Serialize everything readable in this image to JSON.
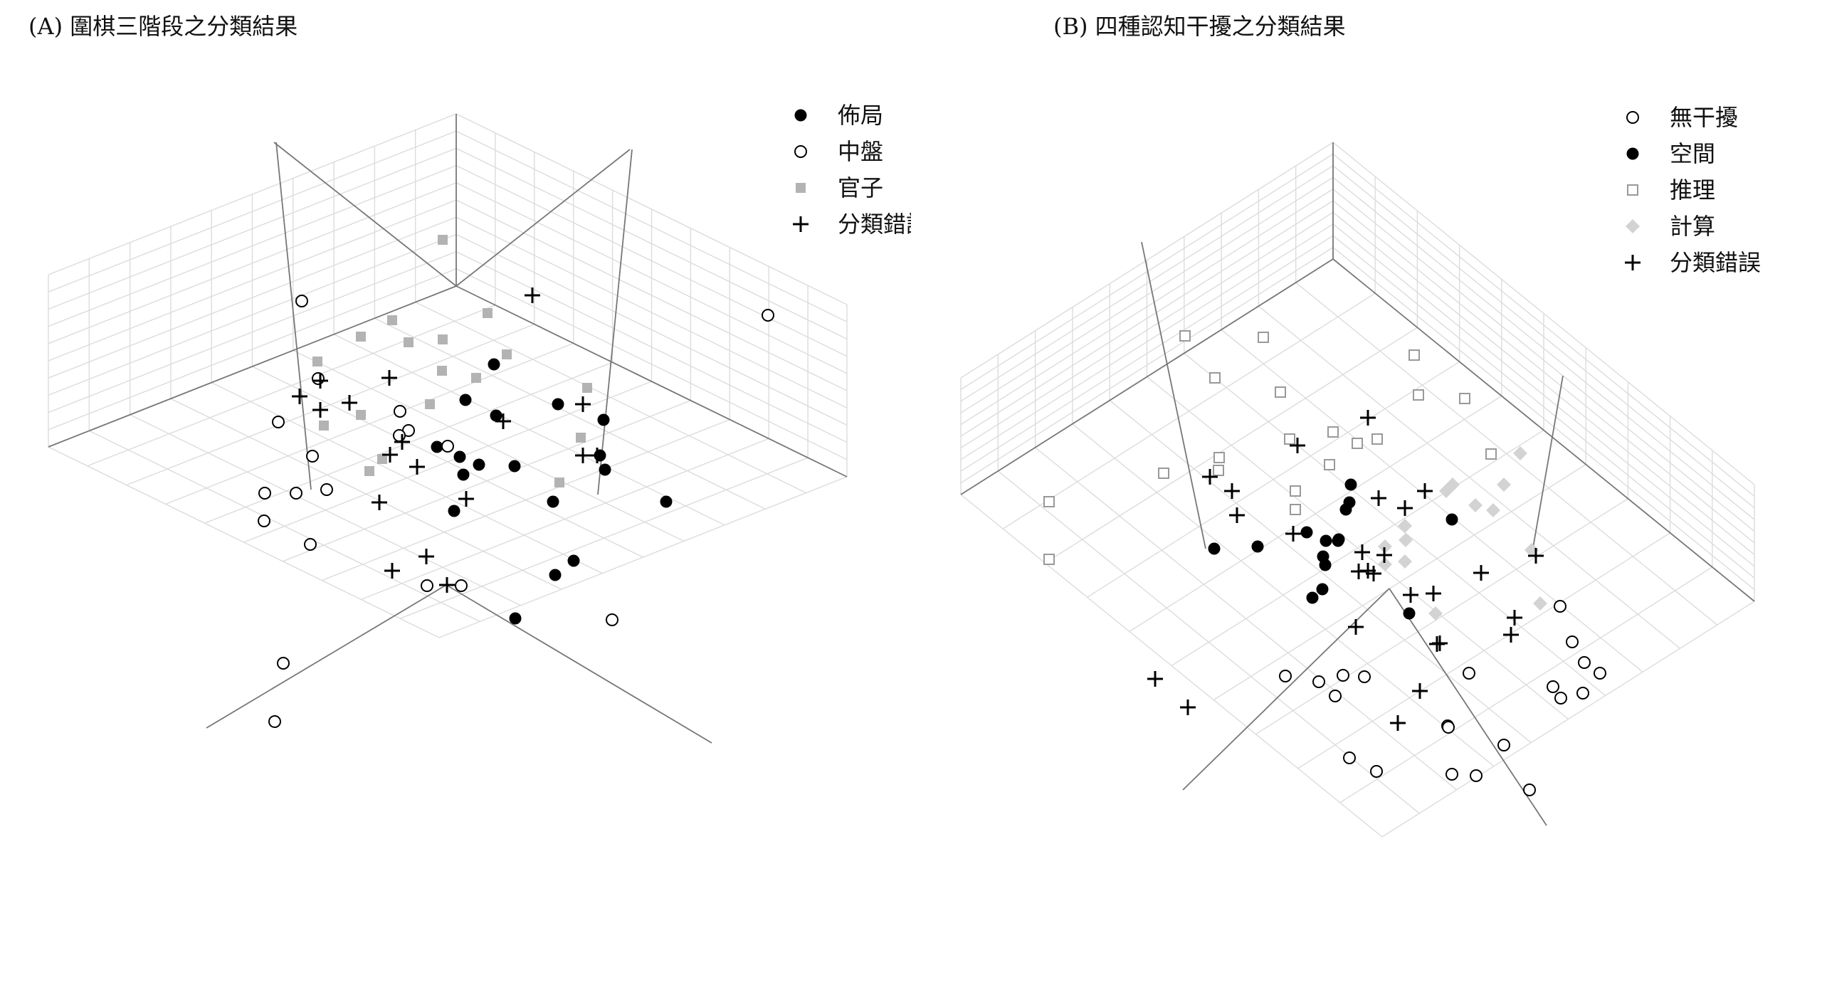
{
  "chart_data": [
    {
      "type": "scatter",
      "title": "(A) 圍棋三階段之分類結果",
      "legend": [
        {
          "label": "佈局",
          "marker": "filled-circle",
          "color": "#000000"
        },
        {
          "label": "中盤",
          "marker": "open-circle",
          "color": "#000000"
        },
        {
          "label": "官子",
          "marker": "filled-square",
          "color": "#b3b3b3"
        },
        {
          "label": "分類錯誤",
          "marker": "plus",
          "color": "#000000"
        }
      ],
      "legend_position": "top-right",
      "grid": true,
      "series": [
        {
          "name": "佈局",
          "points": [
            [
              694,
              512
            ],
            [
              654,
              562
            ],
            [
              697,
              584
            ],
            [
              614,
              628
            ],
            [
              646,
              642
            ],
            [
              673,
              653
            ],
            [
              784,
              568
            ],
            [
              848,
              590
            ],
            [
              843,
              640
            ],
            [
              850,
              660
            ],
            [
              723,
              655
            ],
            [
              777,
              705
            ],
            [
              936,
              705
            ],
            [
              806,
              788
            ],
            [
              780,
              808
            ],
            [
              638,
              718
            ],
            [
              651,
              667
            ],
            [
              724,
              869
            ]
          ]
        },
        {
          "name": "中盤",
          "points": [
            [
              1079,
              443
            ],
            [
              424,
              423
            ],
            [
              447,
              532
            ],
            [
              391,
              593
            ],
            [
              459,
              688
            ],
            [
              439,
              641
            ],
            [
              416,
              693
            ],
            [
              372,
              693
            ],
            [
              371,
              732
            ],
            [
              436,
              765
            ],
            [
              562,
              578
            ],
            [
              574,
              605
            ],
            [
              561,
              612
            ],
            [
              629,
              627
            ],
            [
              600,
              823
            ],
            [
              648,
              823
            ],
            [
              398,
              932
            ],
            [
              386,
              1014
            ],
            [
              860,
              871
            ]
          ]
        },
        {
          "name": "官子",
          "points": [
            [
              622,
              337
            ],
            [
              551,
              450
            ],
            [
              507,
              473
            ],
            [
              685,
              440
            ],
            [
              574,
              481
            ],
            [
              622,
              477
            ],
            [
              712,
              498
            ],
            [
              446,
              508
            ],
            [
              669,
              531
            ],
            [
              621,
              521
            ],
            [
              825,
              545
            ],
            [
              604,
              568
            ],
            [
              507,
              583
            ],
            [
              455,
              598
            ],
            [
              816,
              615
            ],
            [
              519,
              662
            ],
            [
              537,
              645
            ],
            [
              786,
              678
            ]
          ]
        },
        {
          "name": "分類錯誤",
          "points": [
            [
              748,
              415
            ],
            [
              450,
              535
            ],
            [
              421,
              557
            ],
            [
              450,
              576
            ],
            [
              491,
              566
            ],
            [
              547,
              531
            ],
            [
              565,
              621
            ],
            [
              707,
              592
            ],
            [
              819,
              568
            ],
            [
              819,
              640
            ],
            [
              839,
              640
            ],
            [
              548,
              639
            ],
            [
              586,
              656
            ],
            [
              533,
              706
            ],
            [
              655,
              701
            ],
            [
              599,
              782
            ],
            [
              551,
              802
            ],
            [
              628,
              822
            ]
          ]
        }
      ]
    },
    {
      "type": "scatter",
      "title": "(B) 四種認知干擾之分類結果",
      "legend": [
        {
          "label": "無干擾",
          "marker": "open-circle",
          "color": "#000000"
        },
        {
          "label": "空間",
          "marker": "filled-circle",
          "color": "#000000"
        },
        {
          "label": "推理",
          "marker": "open-square",
          "color": "#999999"
        },
        {
          "label": "計算",
          "marker": "filled-diamond",
          "color": "#d3d3d3"
        },
        {
          "label": "分類錯誤",
          "marker": "plus",
          "color": "#000000"
        }
      ],
      "legend_position": "top-right",
      "grid": true,
      "series": [
        {
          "name": "無干擾",
          "points": [
            [
              2192,
              852
            ],
            [
              2209,
              902
            ],
            [
              2226,
              931
            ],
            [
              2248,
              946
            ],
            [
              2224,
              974
            ],
            [
              2193,
              981
            ],
            [
              2182,
              965
            ],
            [
              1806,
              950
            ],
            [
              1853,
              958
            ],
            [
              1887,
              949
            ],
            [
              1876,
              978
            ],
            [
              1917,
              951
            ],
            [
              2064,
              946
            ],
            [
              2034,
              1020
            ],
            [
              2035,
              1022
            ],
            [
              2113,
              1047
            ],
            [
              1896,
              1065
            ],
            [
              1934,
              1084
            ],
            [
              2040,
              1088
            ],
            [
              2074,
              1090
            ],
            [
              2149,
              1110
            ]
          ]
        },
        {
          "name": "空間",
          "points": [
            [
              1898,
              681
            ],
            [
              1896,
              706
            ],
            [
              1891,
              716
            ],
            [
              1863,
              760
            ],
            [
              1880,
              760
            ],
            [
              1859,
              782
            ],
            [
              1862,
              794
            ],
            [
              1858,
              828
            ],
            [
              1836,
              748
            ],
            [
              1881,
              758
            ],
            [
              1706,
              771
            ],
            [
              1767,
              768
            ],
            [
              2040,
              730
            ],
            [
              1844,
              840
            ],
            [
              1980,
              862
            ]
          ]
        },
        {
          "name": "推理",
          "points": [
            [
              1665,
              472
            ],
            [
              1775,
              474
            ],
            [
              1707,
              531
            ],
            [
              1799,
              551
            ],
            [
              1987,
              499
            ],
            [
              1993,
              555
            ],
            [
              2058,
              560
            ],
            [
              1713,
              643
            ],
            [
              1812,
              617
            ],
            [
              1873,
              607
            ],
            [
              1907,
              623
            ],
            [
              1935,
              617
            ],
            [
              1868,
              653
            ],
            [
              1820,
              690
            ],
            [
              1820,
              716
            ],
            [
              2095,
              638
            ],
            [
              1635,
              665
            ],
            [
              1712,
              661
            ],
            [
              1474,
              705
            ],
            [
              1474,
              786
            ]
          ]
        },
        {
          "name": "計算",
          "points": [
            [
              2136,
              637
            ],
            [
              2113,
              681
            ],
            [
              2041,
              681
            ],
            [
              2032,
              690
            ],
            [
              2073,
              710
            ],
            [
              2098,
              717
            ],
            [
              1974,
              739
            ],
            [
              1975,
              759
            ],
            [
              1946,
              768
            ],
            [
              1974,
              789
            ],
            [
              1946,
              793
            ],
            [
              2017,
              862
            ],
            [
              2152,
              773
            ],
            [
              2164,
              848
            ]
          ]
        },
        {
          "name": "分類錯誤",
          "points": [
            [
              1922,
              587
            ],
            [
              1823,
              626
            ],
            [
              1700,
              670
            ],
            [
              1731,
              690
            ],
            [
              1738,
              724
            ],
            [
              1817,
              750
            ],
            [
              1937,
              700
            ],
            [
              1974,
              714
            ],
            [
              2002,
              690
            ],
            [
              1914,
              776
            ],
            [
              1945,
              780
            ],
            [
              1922,
              802
            ],
            [
              1909,
              803
            ],
            [
              1930,
              806
            ],
            [
              1982,
              836
            ],
            [
              2014,
              834
            ],
            [
              2081,
              805
            ],
            [
              2158,
              781
            ],
            [
              2128,
              868
            ],
            [
              2123,
              892
            ],
            [
              2019,
              905
            ],
            [
              1905,
              881
            ],
            [
              1623,
              954
            ],
            [
              1669,
              994
            ],
            [
              1995,
              971
            ],
            [
              1964,
              1016
            ],
            [
              2023,
              904
            ]
          ]
        }
      ]
    }
  ]
}
